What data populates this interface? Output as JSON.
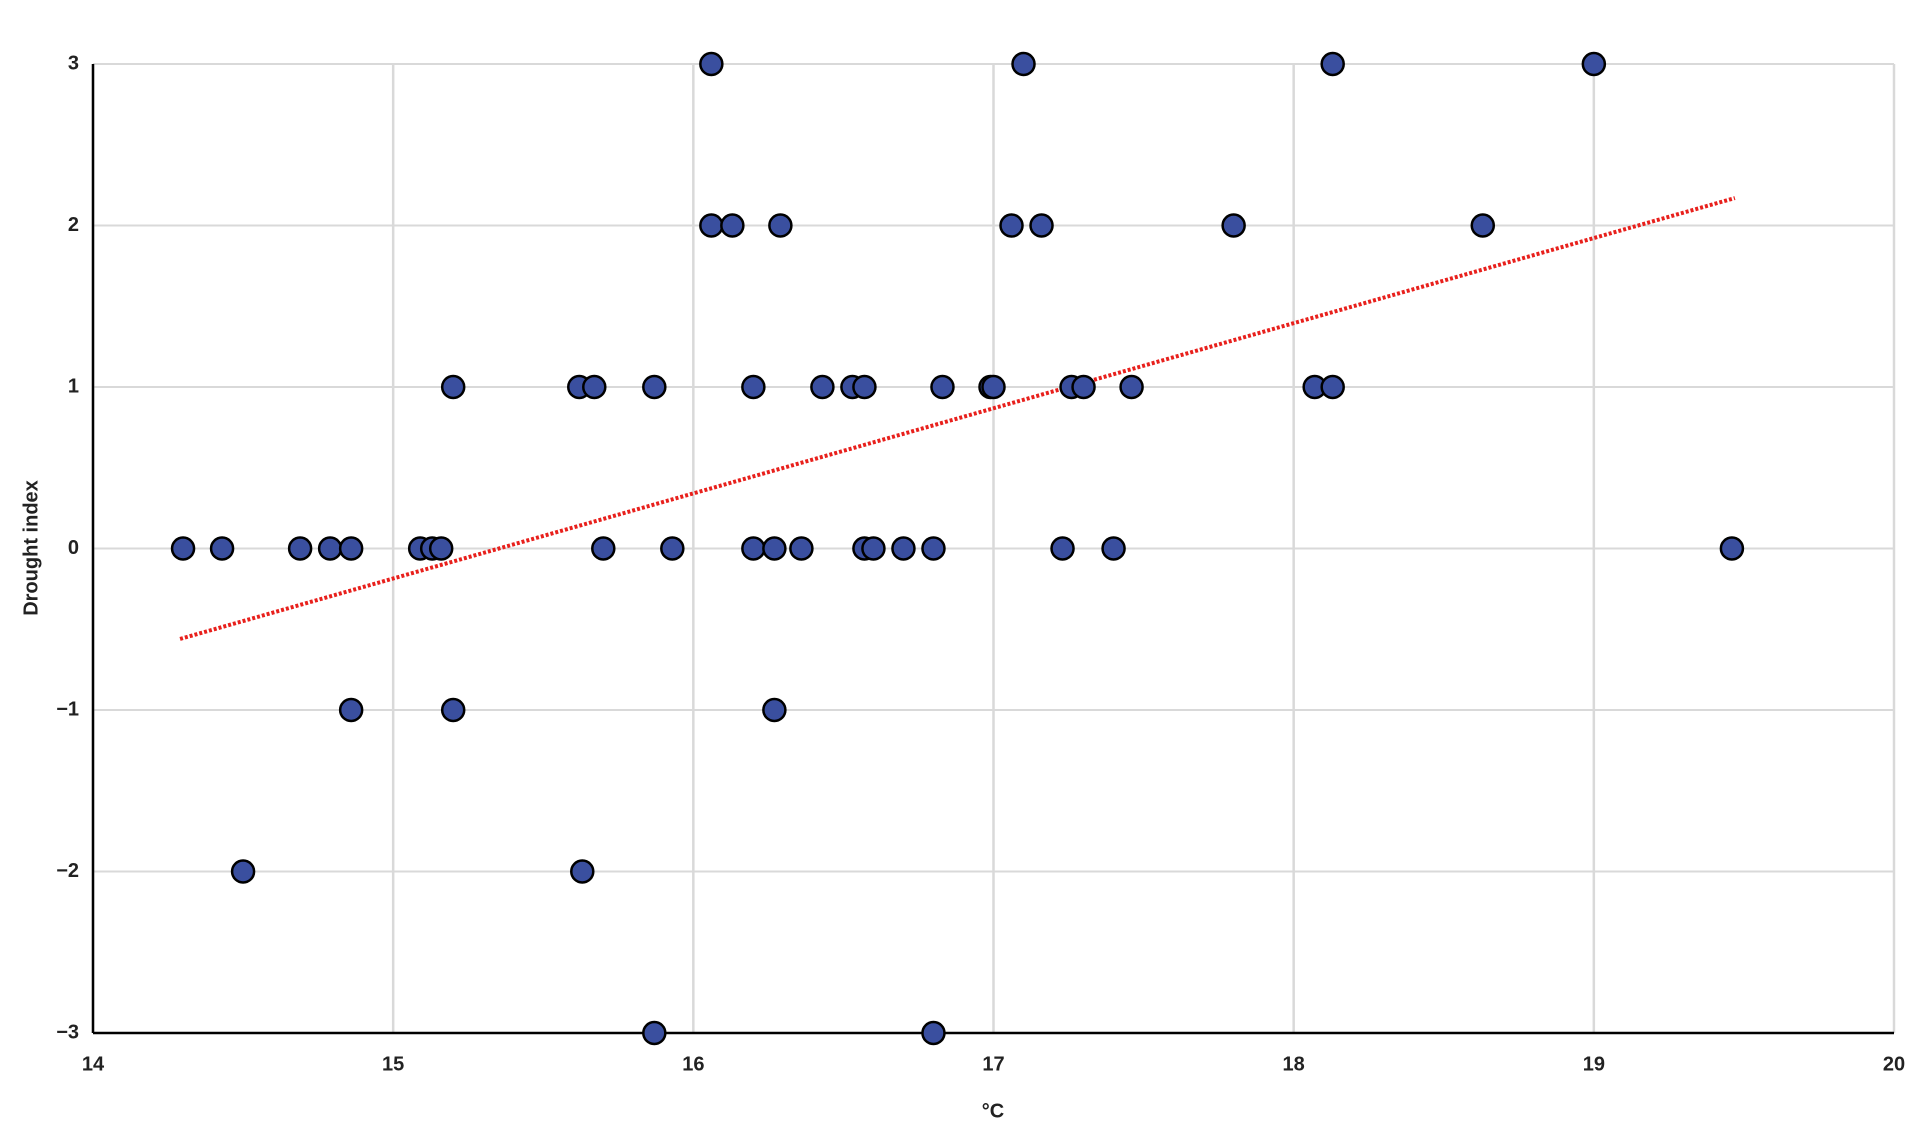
{
  "chart_data": {
    "type": "scatter",
    "xlabel": "°C",
    "ylabel": "Drought index",
    "xlim": [
      14,
      20
    ],
    "xticks": [
      14,
      15,
      16,
      17,
      18,
      19,
      20
    ],
    "ylim": [
      -3,
      3
    ],
    "yticks": [
      {
        "value": -3,
        "label": "−3"
      },
      {
        "value": -2,
        "label": "−2"
      },
      {
        "value": -1,
        "label": "−1"
      },
      0,
      1,
      2,
      3
    ],
    "grid": true,
    "color": "#3a4f9f",
    "x": [
      16.06,
      17.1,
      18.13,
      19.0,
      16.06,
      16.13,
      16.29,
      17.06,
      17.16,
      17.8,
      18.63,
      15.2,
      15.62,
      15.67,
      15.87,
      16.2,
      16.43,
      16.53,
      16.57,
      16.83,
      16.99,
      17.0,
      17.26,
      17.3,
      17.46,
      18.07,
      18.13,
      14.3,
      14.43,
      14.69,
      14.79,
      14.86,
      15.09,
      15.13,
      15.16,
      15.7,
      15.93,
      16.2,
      16.27,
      16.36,
      16.57,
      16.6,
      16.7,
      16.8,
      17.23,
      17.4,
      19.46,
      14.86,
      15.2,
      16.27,
      14.5,
      15.63,
      15.87,
      16.8
    ],
    "values": [
      3,
      3,
      3,
      3,
      2,
      2,
      2,
      2,
      2,
      2,
      2,
      1,
      1,
      1,
      1,
      1,
      1,
      1,
      1,
      1,
      1,
      1,
      1,
      1,
      1,
      1,
      1,
      0,
      0,
      0,
      0,
      0,
      0,
      0,
      0,
      0,
      0,
      0,
      0,
      0,
      0,
      0,
      0,
      0,
      0,
      0,
      0,
      -1,
      -1,
      -1,
      -2,
      -2,
      -3,
      -3
    ],
    "trendline": {
      "x": [
        14.29,
        19.47
      ],
      "values": [
        -0.56,
        2.17
      ],
      "color": "#e8201c"
    }
  }
}
